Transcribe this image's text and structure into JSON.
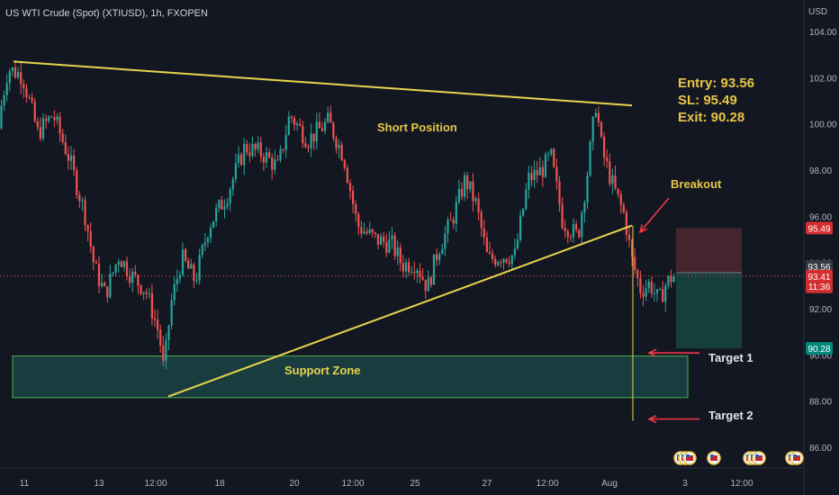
{
  "header": {
    "symbol": "US WTI Crude (Spot) (XTIUSD), 1h, FXOPEN",
    "currency": "USD"
  },
  "chart_data": {
    "type": "candlestick",
    "x_tick_labels": [
      "11",
      "13",
      "12:00",
      "18",
      "20",
      "12:00",
      "25",
      "27",
      "12:00",
      "Aug",
      "3",
      "12:00"
    ],
    "y_ticks": [
      "104.00",
      "102.00",
      "100.00",
      "98.00",
      "96.00",
      "94.00",
      "92.00",
      "90.00",
      "88.00",
      "86.00"
    ],
    "ylim": [
      85.5,
      105.0
    ],
    "price_path": [
      [
        0,
        99.8
      ],
      [
        12,
        102.4
      ],
      [
        28,
        102.1
      ],
      [
        45,
        99.6
      ],
      [
        62,
        100.4
      ],
      [
        80,
        98.5
      ],
      [
        98,
        96.0
      ],
      [
        108,
        93.8
      ],
      [
        120,
        92.6
      ],
      [
        135,
        94.3
      ],
      [
        150,
        93.4
      ],
      [
        165,
        92.8
      ],
      [
        180,
        90.9
      ],
      [
        185,
        89.3
      ],
      [
        193,
        92.2
      ],
      [
        205,
        94.2
      ],
      [
        220,
        93.2
      ],
      [
        235,
        95.6
      ],
      [
        255,
        96.9
      ],
      [
        275,
        99.0
      ],
      [
        295,
        98.7
      ],
      [
        312,
        98.1
      ],
      [
        325,
        100.4
      ],
      [
        345,
        99.3
      ],
      [
        368,
        100.1
      ],
      [
        385,
        98.6
      ],
      [
        400,
        95.6
      ],
      [
        420,
        95.0
      ],
      [
        438,
        94.8
      ],
      [
        450,
        93.9
      ],
      [
        465,
        94.0
      ],
      [
        478,
        92.9
      ],
      [
        490,
        94.6
      ],
      [
        505,
        95.8
      ],
      [
        520,
        97.6
      ],
      [
        532,
        96.5
      ],
      [
        545,
        94.1
      ],
      [
        560,
        94.3
      ],
      [
        575,
        94.3
      ],
      [
        590,
        97.6
      ],
      [
        605,
        98.0
      ],
      [
        615,
        98.6
      ],
      [
        628,
        95.8
      ],
      [
        645,
        95.1
      ],
      [
        655,
        97.7
      ],
      [
        665,
        100.9
      ],
      [
        672,
        98.8
      ],
      [
        685,
        97.2
      ],
      [
        697,
        96.0
      ],
      [
        705,
        94.1
      ],
      [
        715,
        92.8
      ],
      [
        725,
        93.1
      ],
      [
        735,
        92.3
      ],
      [
        742,
        93.0
      ],
      [
        750,
        93.41
      ]
    ],
    "last_price": 93.41
  },
  "annotations": {
    "trade_setup": [
      "Entry: 93.56",
      "SL: 95.49",
      "Exit: 90.28"
    ],
    "short_position": "Short Position",
    "breakout": "Breakout",
    "support_zone": "Support Zone",
    "target1": "Target 1",
    "target2": "Target 2",
    "support_zone_top": 89.95,
    "support_zone_bottom": 88.15,
    "resistance_line": [
      [
        15,
        102.7
      ],
      [
        702,
        100.8
      ]
    ],
    "support_line": [
      [
        187,
        88.2
      ],
      [
        702,
        95.6
      ]
    ],
    "position_entry": 93.56,
    "position_sl": 95.49,
    "position_exit": 90.28,
    "target2_level": 87.3
  },
  "price_badges": {
    "sl": "95.49",
    "entry": "93.56",
    "current": "93.41",
    "countdown": "11:36",
    "exit": "90.28"
  },
  "colors": {
    "background": "#131722",
    "up": "#26a69a",
    "down": "#ef5350",
    "trendline": "#e8d44d",
    "support_zone_fill": "#1f5d57",
    "support_zone_border": "#4caf50",
    "sl_zone": "#4a2730",
    "target_zone": "#16433f",
    "arrow": "#f23645"
  }
}
